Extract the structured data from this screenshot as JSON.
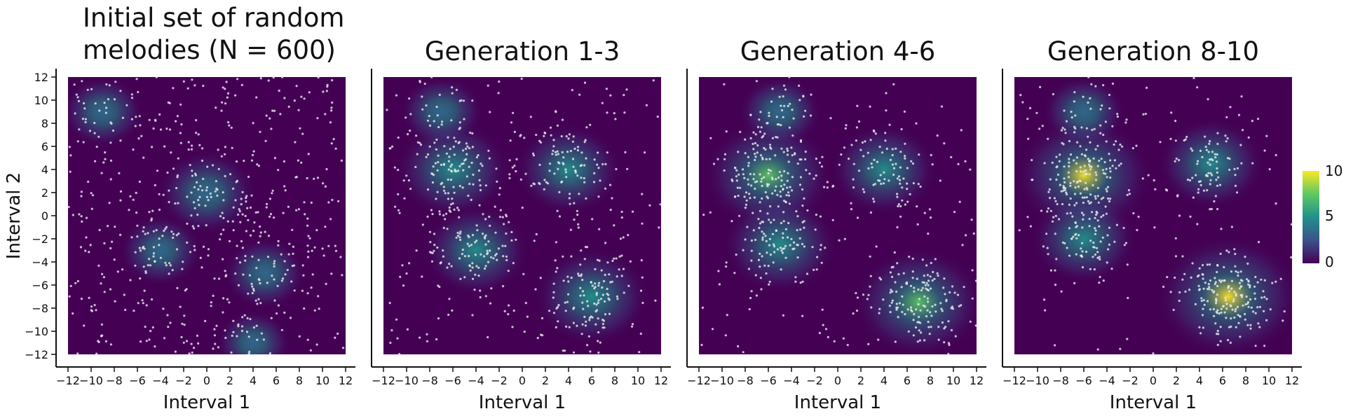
{
  "chart_data": [
    {
      "type": "scatter",
      "title": [
        "Initial set of random",
        "melodies (N = 600)"
      ],
      "xlabel": "Interval 1",
      "ylabel": "Interval 2",
      "xlim": [
        -12,
        12
      ],
      "ylim": [
        -12,
        12
      ],
      "xticks": [
        "−12",
        "−10",
        "−8",
        "−6",
        "−4",
        "−2",
        "0",
        "2",
        "4",
        "6",
        "8",
        "10",
        "12"
      ],
      "yticks": [
        "12",
        "10",
        "8",
        "6",
        "4",
        "2",
        "0",
        "−2",
        "−4",
        "−6",
        "−8",
        "−10",
        "−12"
      ],
      "density_overlay": true,
      "points_shown": true,
      "clusters": [
        {
          "x": 0,
          "y": 2,
          "weight": 4
        },
        {
          "x": -4,
          "y": -3,
          "weight": 2
        },
        {
          "x": 5,
          "y": -5,
          "weight": 2
        },
        {
          "x": -9,
          "y": 9,
          "weight": 2
        },
        {
          "x": 4,
          "y": -11,
          "weight": 1
        }
      ],
      "uniform_share": 0.7
    },
    {
      "type": "scatter",
      "title": [
        "Generation 1-3"
      ],
      "xlabel": "Interval 1",
      "ylabel": "",
      "xlim": [
        -12,
        12
      ],
      "ylim": [
        -12,
        12
      ],
      "xticks": [
        "−12",
        "−10",
        "−8",
        "−6",
        "−4",
        "−2",
        "0",
        "2",
        "4",
        "6",
        "8",
        "10",
        "12"
      ],
      "density_overlay": true,
      "points_shown": true,
      "clusters": [
        {
          "x": -6,
          "y": 4,
          "weight": 6
        },
        {
          "x": -4,
          "y": -3,
          "weight": 5
        },
        {
          "x": 4,
          "y": 4,
          "weight": 5
        },
        {
          "x": 6,
          "y": -7,
          "weight": 6
        },
        {
          "x": -7,
          "y": 9,
          "weight": 2
        }
      ],
      "uniform_share": 0.35
    },
    {
      "type": "scatter",
      "title": [
        "Generation 4-6"
      ],
      "xlabel": "Interval 1",
      "ylabel": "",
      "xlim": [
        -12,
        12
      ],
      "ylim": [
        -12,
        12
      ],
      "xticks": [
        "−12",
        "−10",
        "−8",
        "−6",
        "−4",
        "−2",
        "0",
        "2",
        "4",
        "6",
        "8",
        "10",
        "12"
      ],
      "density_overlay": true,
      "points_shown": true,
      "clusters": [
        {
          "x": -6,
          "y": 3.5,
          "weight": 8
        },
        {
          "x": -5,
          "y": -2.5,
          "weight": 6
        },
        {
          "x": 4,
          "y": 4,
          "weight": 5
        },
        {
          "x": 7,
          "y": -7.5,
          "weight": 8
        },
        {
          "x": -5,
          "y": 9,
          "weight": 2
        }
      ],
      "uniform_share": 0.2
    },
    {
      "type": "scatter",
      "title": [
        "Generation 8-10"
      ],
      "xlabel": "Interval 1",
      "ylabel": "",
      "xlim": [
        -12,
        12
      ],
      "ylim": [
        -12,
        12
      ],
      "xticks": [
        "−12",
        "−10",
        "−8",
        "−6",
        "−4",
        "−2",
        "0",
        "2",
        "4",
        "6",
        "8",
        "10",
        "12"
      ],
      "density_overlay": true,
      "points_shown": true,
      "clusters": [
        {
          "x": -6,
          "y": 3.5,
          "weight": 9
        },
        {
          "x": -6,
          "y": -2,
          "weight": 5
        },
        {
          "x": 5,
          "y": 4.5,
          "weight": 5
        },
        {
          "x": 6.5,
          "y": -7,
          "weight": 10
        },
        {
          "x": -6,
          "y": 9,
          "weight": 2
        }
      ],
      "uniform_share": 0.1
    }
  ],
  "colorbar": {
    "ticks": [
      "10",
      "5",
      "0"
    ],
    "range": [
      0,
      10
    ],
    "colors": [
      "#440154",
      "#3b528b",
      "#21918c",
      "#5ec962",
      "#fde725"
    ]
  }
}
